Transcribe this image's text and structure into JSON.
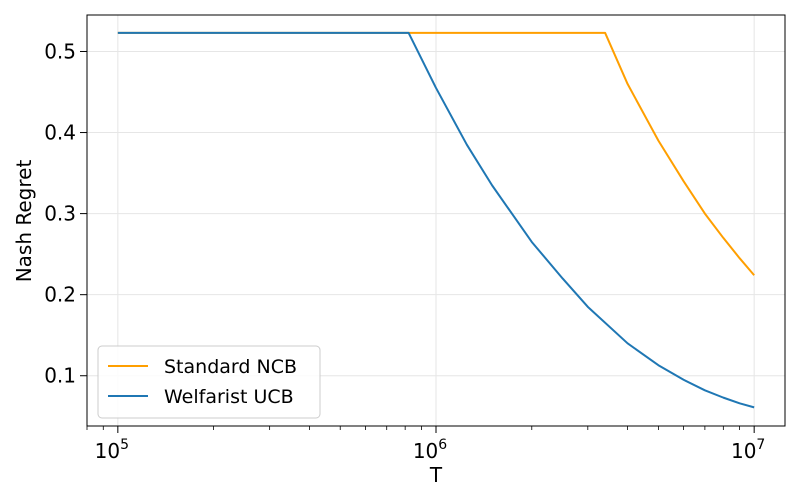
{
  "chart_data": {
    "type": "line",
    "xlabel": "T",
    "ylabel": "Nash Regret",
    "xscale": "log",
    "xlim": [
      80000,
      12500000
    ],
    "ylim": [
      0.038,
      0.545
    ],
    "grid": true,
    "legend_position": "bottom-left",
    "x_ticks": [
      {
        "value": 100000,
        "base": "10",
        "exp": "5"
      },
      {
        "value": 1000000,
        "base": "10",
        "exp": "6"
      },
      {
        "value": 10000000,
        "base": "10",
        "exp": "7"
      }
    ],
    "y_ticks": [
      0.1,
      0.2,
      0.3,
      0.4,
      0.5
    ],
    "y_tick_labels": [
      "0.1",
      "0.2",
      "0.3",
      "0.4",
      "0.5"
    ],
    "series": [
      {
        "name": "Standard NCB",
        "color": "#ff9f00",
        "points": [
          [
            100000,
            0.523
          ],
          [
            500000,
            0.523
          ],
          [
            1000000,
            0.523
          ],
          [
            2000000,
            0.523
          ],
          [
            3400000,
            0.523
          ],
          [
            4000000,
            0.46
          ],
          [
            5000000,
            0.39
          ],
          [
            6000000,
            0.34
          ],
          [
            7000000,
            0.3
          ],
          [
            8000000,
            0.27
          ],
          [
            9000000,
            0.245
          ],
          [
            10000000,
            0.224
          ]
        ]
      },
      {
        "name": "Welfarist UCB",
        "color": "#1f77b4",
        "points": [
          [
            100000,
            0.523
          ],
          [
            300000,
            0.523
          ],
          [
            600000,
            0.523
          ],
          [
            820000,
            0.523
          ],
          [
            1000000,
            0.455
          ],
          [
            1250000,
            0.385
          ],
          [
            1500000,
            0.335
          ],
          [
            2000000,
            0.265
          ],
          [
            2500000,
            0.22
          ],
          [
            3000000,
            0.185
          ],
          [
            4000000,
            0.14
          ],
          [
            5000000,
            0.113
          ],
          [
            6000000,
            0.095
          ],
          [
            7000000,
            0.082
          ],
          [
            8000000,
            0.073
          ],
          [
            9000000,
            0.066
          ],
          [
            10000000,
            0.061
          ]
        ]
      }
    ]
  }
}
